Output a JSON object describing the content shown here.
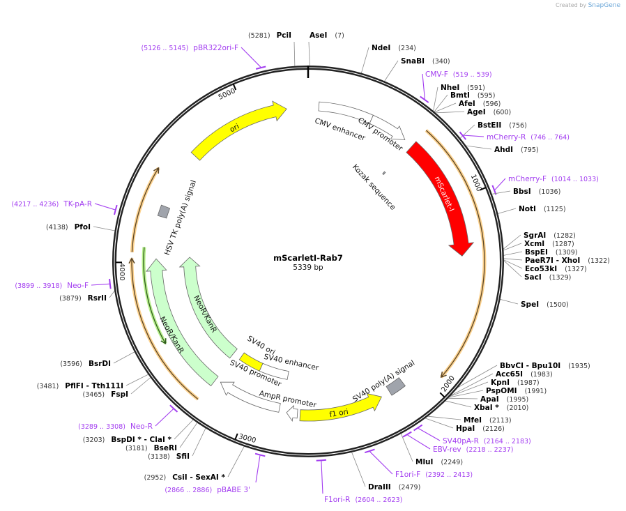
{
  "branding": {
    "created_by": "Created by",
    "app": "SnapGene"
  },
  "plasmid": {
    "name": "mScarletI-Rab7",
    "length_label": "5339 bp",
    "length": 5339
  },
  "ticks": [
    "1000",
    "2000",
    "3000",
    "4000",
    "5000"
  ],
  "colors": {
    "backbone": "#222222",
    "enzyme": "#000000",
    "primer": "#a23cf0",
    "leader": "#888888"
  },
  "features": [
    {
      "name": "CMV enhancer",
      "start": 59,
      "end": 356,
      "dir": "none",
      "color": "#ffffff"
    },
    {
      "name": "CMV promoter",
      "start": 356,
      "end": 571,
      "dir": "cw",
      "color": "#ffffff"
    },
    {
      "name": "Kozak sequence",
      "start": 598,
      "end": 608,
      "dir": "none",
      "color": "#a0a4ac"
    },
    {
      "name": "mScarlet-I",
      "start": 623,
      "end": 1305,
      "dir": "cw",
      "color": "#ff0000"
    },
    {
      "name": "",
      "start": 623,
      "end": 1943,
      "dir": "cw",
      "color": "#f7a93c"
    },
    {
      "name": "SV40 poly(A) signal",
      "start": 2106,
      "end": 2195,
      "dir": "none",
      "color": "#a0a4ac"
    },
    {
      "name": "f1 ori",
      "start": 2247,
      "end": 2714,
      "dir": "ccw",
      "color": "#ffff00"
    },
    {
      "name": "AmpR promoter",
      "start": 2729,
      "end": 2790,
      "dir": "cw",
      "color": "#ffffff"
    },
    {
      "name": "SV40 promoter",
      "start": 2833,
      "end": 3203,
      "dir": "cw",
      "color": "#ffffff"
    },
    {
      "name": "SV40 enhancer",
      "start": 2818,
      "end": 3025,
      "dir": "none",
      "color": "#ffffff"
    },
    {
      "name": "SV40 ori",
      "start": 3025,
      "end": 3189,
      "dir": "none",
      "color": "#ffff00"
    },
    {
      "name": "NeoR/KanR",
      "start": 3248,
      "end": 4034,
      "dir": "cw",
      "color": "#ccffcc"
    },
    {
      "name": "NeoR/KanR",
      "start": 3233,
      "end": 4019,
      "dir": "cw",
      "color": "#ccffcc"
    },
    {
      "name": "",
      "start": 3560,
      "end": 4078,
      "dir": "ccw",
      "color": "#8fe05a"
    },
    {
      "name": "",
      "start": 3242,
      "end": 4019,
      "dir": "cw",
      "color": "#f7a93c"
    },
    {
      "name": "",
      "start": 4049,
      "end": 4479,
      "dir": "cw",
      "color": "#f7a93c"
    },
    {
      "name": "HSV TK poly(A) signal",
      "start": 4256,
      "end": 4316,
      "dir": "none",
      "color": "#a0a4ac"
    },
    {
      "name": "ori",
      "start": 4642,
      "end": 5220,
      "dir": "cw",
      "color": "#ffff00"
    }
  ],
  "sites": [
    {
      "type": "enzyme",
      "name": "PciI",
      "pos": "(5281)"
    },
    {
      "type": "enzyme",
      "name": "AseI",
      "pos": "(7)"
    },
    {
      "type": "enzyme",
      "name": "NdeI",
      "pos": "(234)"
    },
    {
      "type": "enzyme",
      "name": "SnaBI",
      "pos": "(340)"
    },
    {
      "type": "primer",
      "name": "CMV-F",
      "pos": "(519 .. 539)"
    },
    {
      "type": "enzyme",
      "name": "NheI",
      "pos": "(591)"
    },
    {
      "type": "enzyme",
      "name": "BmtI",
      "pos": "(595)"
    },
    {
      "type": "enzyme",
      "name": "AfeI",
      "pos": "(596)"
    },
    {
      "type": "enzyme",
      "name": "AgeI",
      "pos": "(600)"
    },
    {
      "type": "enzyme",
      "name": "BstEII",
      "pos": "(756)"
    },
    {
      "type": "primer",
      "name": "mCherry-R",
      "pos": "(746 .. 764)"
    },
    {
      "type": "enzyme",
      "name": "AhdI",
      "pos": "(795)"
    },
    {
      "type": "primer",
      "name": "mCherry-F",
      "pos": "(1014 .. 1033)"
    },
    {
      "type": "enzyme",
      "name": "BbsI",
      "pos": "(1036)"
    },
    {
      "type": "enzyme",
      "name": "NotI",
      "pos": "(1125)"
    },
    {
      "type": "enzyme",
      "name": "SgrAI",
      "pos": "(1282)"
    },
    {
      "type": "enzyme",
      "name": "XcmI",
      "pos": "(1287)"
    },
    {
      "type": "enzyme",
      "name": "BspEI",
      "pos": "(1309)"
    },
    {
      "type": "enzyme",
      "name": "PaeR7I  - XhoI",
      "pos": "(1322)"
    },
    {
      "type": "enzyme",
      "name": "Eco53kI",
      "pos": "(1327)"
    },
    {
      "type": "enzyme",
      "name": "SacI",
      "pos": "(1329)"
    },
    {
      "type": "enzyme",
      "name": "SpeI",
      "pos": "(1500)"
    },
    {
      "type": "enzyme",
      "name": "BbvCI  - Bpu10I",
      "pos": "(1935)"
    },
    {
      "type": "enzyme",
      "name": "Acc65I",
      "pos": "(1983)"
    },
    {
      "type": "enzyme",
      "name": "KpnI",
      "pos": "(1987)"
    },
    {
      "type": "enzyme",
      "name": "PspOMI",
      "pos": "(1991)"
    },
    {
      "type": "enzyme",
      "name": "ApaI",
      "pos": "(1995)"
    },
    {
      "type": "enzyme",
      "name": "XbaI *",
      "pos": "(2010)"
    },
    {
      "type": "enzyme",
      "name": "MfeI",
      "pos": "(2113)"
    },
    {
      "type": "enzyme",
      "name": "HpaI",
      "pos": "(2126)"
    },
    {
      "type": "primer",
      "name": "SV40pA-R",
      "pos": "(2164 .. 2183)"
    },
    {
      "type": "primer",
      "name": "EBV-rev",
      "pos": "(2218 .. 2237)"
    },
    {
      "type": "enzyme",
      "name": "MluI",
      "pos": "(2249)"
    },
    {
      "type": "primer",
      "name": "F1ori-F",
      "pos": "(2392 .. 2413)"
    },
    {
      "type": "enzyme",
      "name": "DraIII",
      "pos": "(2479)"
    },
    {
      "type": "primer",
      "name": "F1ori-R",
      "pos": "(2604 .. 2623)"
    },
    {
      "type": "primer",
      "name": "pBABE 3'",
      "pos": "(2866 .. 2886)"
    },
    {
      "type": "enzyme",
      "name": "CsiI  - SexAI *",
      "pos": "(2952)"
    },
    {
      "type": "enzyme",
      "name": "SfiI",
      "pos": "(3138)"
    },
    {
      "type": "enzyme",
      "name": "BseRI",
      "pos": "(3181)"
    },
    {
      "type": "enzyme",
      "name": "BspDI *  - ClaI *",
      "pos": "(3203)"
    },
    {
      "type": "primer",
      "name": "Neo-R",
      "pos": "(3289 .. 3308)"
    },
    {
      "type": "enzyme",
      "name": "FspI",
      "pos": "(3465)"
    },
    {
      "type": "enzyme",
      "name": "PflFI  - Tth111I",
      "pos": "(3481)"
    },
    {
      "type": "enzyme",
      "name": "BsrDI",
      "pos": "(3596)"
    },
    {
      "type": "enzyme",
      "name": "RsrII",
      "pos": "(3879)"
    },
    {
      "type": "primer",
      "name": "Neo-F",
      "pos": "(3899 .. 3918)"
    },
    {
      "type": "enzyme",
      "name": "PfoI",
      "pos": "(4138)"
    },
    {
      "type": "primer",
      "name": "TK-pA-R",
      "pos": "(4217 .. 4236)"
    },
    {
      "type": "primer",
      "name": "pBR322ori-F",
      "pos": "(5126 .. 5145)"
    }
  ]
}
